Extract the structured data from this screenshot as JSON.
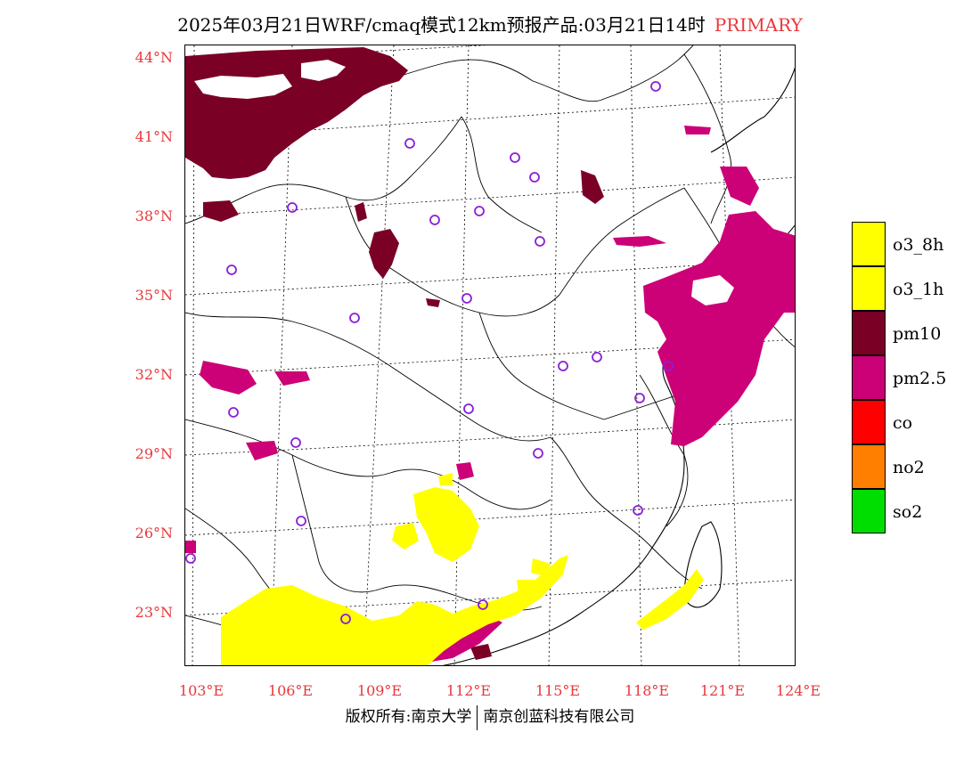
{
  "header": {
    "title": "2025年03月21日WRF/cmaq模式12km预报产品:03月21日14时",
    "tag": "PRIMARY"
  },
  "colors": {
    "o3_8h": "#ffff00",
    "o3_1h": "#ffff00",
    "pm10": "#7a0026",
    "pm2_5": "#cc0077",
    "co": "#ff0000",
    "no2": "#ff7f00",
    "so2": "#00dd00",
    "axis_label": "#e8383b",
    "station_marker": "#8b1fd6"
  },
  "axes": {
    "lat_labels": [
      "44°N",
      "41°N",
      "38°N",
      "35°N",
      "32°N",
      "29°N",
      "26°N",
      "23°N"
    ],
    "lon_labels": [
      "103°E",
      "106°E",
      "109°E",
      "112°E",
      "115°E",
      "118°E",
      "121°E",
      "124°E"
    ]
  },
  "legend": {
    "items": [
      {
        "label": "o3_8h",
        "color": "#ffff00"
      },
      {
        "label": "o3_1h",
        "color": "#ffff00"
      },
      {
        "label": "pm10",
        "color": "#7a0026"
      },
      {
        "label": "pm2.5",
        "color": "#cc0077"
      },
      {
        "label": "co",
        "color": "#ff0000"
      },
      {
        "label": "no2",
        "color": "#ff7f00"
      },
      {
        "label": "so2",
        "color": "#00dd00"
      }
    ]
  },
  "footer": {
    "owner": "版权所有:南京大学",
    "company": "南京创蓝科技有限公司"
  }
}
